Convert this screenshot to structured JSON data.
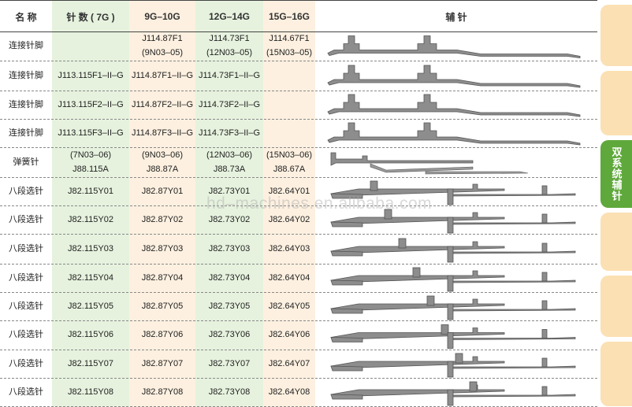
{
  "header": {
    "name": "名 称",
    "c7": "针 数 ( 7G )",
    "c10": "9G–10G",
    "c14": "12G–14G",
    "c16": "15G–16G",
    "img": "辅 针"
  },
  "rows": [
    {
      "name": "连接针脚",
      "c7": [],
      "c10": [
        "J114.87F1",
        "(9N03–05)"
      ],
      "c14": [
        "J114.73F1",
        "(12N03–05)"
      ],
      "c16": [
        "J114.67F1",
        "(15N03–05)"
      ],
      "needle": "jack"
    },
    {
      "name": "连接针脚",
      "c7": [
        "J113.115F1–II–G"
      ],
      "c10": [
        "J114.87F1–II–G"
      ],
      "c14": [
        "J114.73F1–II–G"
      ],
      "c16": [],
      "needle": "jack"
    },
    {
      "name": "连接针脚",
      "c7": [
        "J113.115F2–II–G"
      ],
      "c10": [
        "J114.87F2–II–G"
      ],
      "c14": [
        "J114.73F2–II–G"
      ],
      "c16": [],
      "needle": "jack"
    },
    {
      "name": "连接针脚",
      "c7": [
        "J113.115F3–II–G"
      ],
      "c10": [
        "J114.87F3–II–G"
      ],
      "c14": [
        "J114.73F3–II–G"
      ],
      "c16": [],
      "needle": "jack"
    },
    {
      "name": "弹簧针",
      "c7": [
        "(7N03–06)",
        "J88.115A"
      ],
      "c10": [
        "(9N03–06)",
        "J88.87A"
      ],
      "c14": [
        "(12N03–06)",
        "J88.73A"
      ],
      "c16": [
        "(15N03–06)",
        "J88.67A"
      ],
      "needle": "spring"
    },
    {
      "name": "八段选针",
      "c7": [
        "J82.115Y01"
      ],
      "c10": [
        "J82.87Y01"
      ],
      "c14": [
        "J82.73Y01"
      ],
      "c16": [
        "J82.64Y01"
      ],
      "needle": "select",
      "butt": 1
    },
    {
      "name": "八段选针",
      "c7": [
        "J82.115Y02"
      ],
      "c10": [
        "J82.87Y02"
      ],
      "c14": [
        "J82.73Y02"
      ],
      "c16": [
        "J82.64Y02"
      ],
      "needle": "select",
      "butt": 2
    },
    {
      "name": "八段选针",
      "c7": [
        "J82.115Y03"
      ],
      "c10": [
        "J82.87Y03"
      ],
      "c14": [
        "J82.73Y03"
      ],
      "c16": [
        "J82.64Y03"
      ],
      "needle": "select",
      "butt": 3
    },
    {
      "name": "八段选针",
      "c7": [
        "J82.115Y04"
      ],
      "c10": [
        "J82.87Y04"
      ],
      "c14": [
        "J82.73Y04"
      ],
      "c16": [
        "J82.64Y04"
      ],
      "needle": "select",
      "butt": 4
    },
    {
      "name": "八段选针",
      "c7": [
        "J82.115Y05"
      ],
      "c10": [
        "J82.87Y05"
      ],
      "c14": [
        "J82.73Y05"
      ],
      "c16": [
        "J82.64Y05"
      ],
      "needle": "select",
      "butt": 5
    },
    {
      "name": "八段选针",
      "c7": [
        "J82.115Y06"
      ],
      "c10": [
        "J82.87Y06"
      ],
      "c14": [
        "J82.73Y06"
      ],
      "c16": [
        "J82.64Y06"
      ],
      "needle": "select",
      "butt": 6
    },
    {
      "name": "八段选针",
      "c7": [
        "J82.115Y07"
      ],
      "c10": [
        "J82.87Y07"
      ],
      "c14": [
        "J82.73Y07"
      ],
      "c16": [
        "J82.64Y07"
      ],
      "needle": "select",
      "butt": 7
    },
    {
      "name": "八段选针",
      "c7": [
        "J82.115Y08"
      ],
      "c10": [
        "J82.87Y08"
      ],
      "c14": [
        "J82.73Y08"
      ],
      "c16": [
        "J82.64Y08"
      ],
      "needle": "select",
      "butt": 8
    }
  ],
  "watermark": "hd–machines.en.alibaba.com",
  "side_tabs": {
    "active_label": "双系统辅针",
    "active_color": "#5fa83b",
    "inactive_color": "#fbe0b3"
  }
}
